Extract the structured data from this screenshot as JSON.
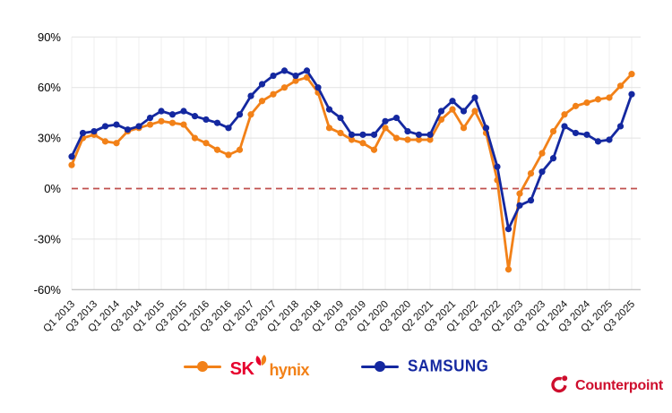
{
  "chart_data": {
    "type": "line",
    "categories": [
      "Q1 2013",
      "Q2 2013",
      "Q3 2013",
      "Q4 2013",
      "Q1 2014",
      "Q2 2014",
      "Q3 2014",
      "Q4 2014",
      "Q1 2015",
      "Q2 2015",
      "Q3 2015",
      "Q4 2015",
      "Q1 2016",
      "Q2 2016",
      "Q3 2016",
      "Q4 2016",
      "Q1 2017",
      "Q2 2017",
      "Q3 2017",
      "Q4 2017",
      "Q1 2018",
      "Q2 2018",
      "Q3 2018",
      "Q4 2018",
      "Q1 2019",
      "Q2 2019",
      "Q3 2019",
      "Q4 2019",
      "Q1 2020",
      "Q2 2020",
      "Q3 2020",
      "Q4 2020",
      "Q1 2021",
      "Q2 2021",
      "Q3 2021",
      "Q4 2021",
      "Q1 2022",
      "Q2 2022",
      "Q3 2022",
      "Q4 2022",
      "Q1 2023",
      "Q2 2023",
      "Q3 2023",
      "Q4 2023",
      "Q1 2024",
      "Q2 2024",
      "Q3 2024",
      "Q4 2024",
      "Q1 2025",
      "Q2 2025",
      "Q3 2025"
    ],
    "x_tick_labels": [
      "Q1 2013",
      "Q3 2013",
      "Q1 2014",
      "Q3 2014",
      "Q1 2015",
      "Q3 2015",
      "Q1 2016",
      "Q3 2016",
      "Q1 2017",
      "Q3 2017",
      "Q1 2018",
      "Q3 2018",
      "Q1 2019",
      "Q3 2019",
      "Q1 2020",
      "Q3 2020",
      "Q2 2021",
      "Q3 2021",
      "Q1 2022",
      "Q3 2022",
      "Q1 2023",
      "Q3 2023",
      "Q1 2024",
      "Q3 2024",
      "Q1 2025",
      "Q3 2025"
    ],
    "series": [
      {
        "name": "SK hynix",
        "color": "#F28118",
        "values": [
          14,
          30,
          32,
          28,
          27,
          34,
          36,
          38,
          40,
          39,
          38,
          30,
          27,
          23,
          20,
          23,
          44,
          52,
          56,
          60,
          64,
          66,
          57,
          36,
          33,
          29,
          27,
          23,
          36,
          30,
          29,
          29,
          29,
          41,
          47,
          36,
          46,
          33,
          5,
          -48,
          -3,
          9,
          21,
          34,
          44,
          49,
          51,
          53,
          54,
          61,
          68
        ]
      },
      {
        "name": "SAMSUNG",
        "color": "#1428A0",
        "values": [
          19,
          33,
          34,
          37,
          38,
          35,
          37,
          42,
          46,
          44,
          46,
          43,
          41,
          39,
          36,
          44,
          55,
          62,
          67,
          70,
          67,
          70,
          60,
          47,
          42,
          32,
          32,
          32,
          40,
          42,
          34,
          32,
          32,
          46,
          52,
          46,
          54,
          36,
          13,
          -24,
          -10,
          -7,
          10,
          18,
          37,
          33,
          32,
          28,
          29,
          37,
          56
        ]
      }
    ],
    "ylabel": "",
    "xlabel": "",
    "yticks": [
      90,
      60,
      30,
      0,
      -30,
      -60
    ],
    "ytick_labels": [
      "90%",
      "60%",
      "30%",
      "0%",
      "-30%",
      "-60%"
    ],
    "ylim": [
      -60,
      90
    ],
    "grid": "on",
    "zero_line": {
      "value": 0,
      "style": "dashed",
      "color": "#C0504D"
    },
    "legend_position": "bottom-center",
    "unit": "%"
  },
  "legend": {
    "sk_prefix": "SK",
    "sk_suffix": "hynix",
    "samsung_label": "SAMSUNG"
  },
  "branding": {
    "name": "Counterpoint",
    "color": "#CE0E2D"
  },
  "colors": {
    "sk_line": "#F28118",
    "sk_red": "#E6002D",
    "samsung_line": "#1428A0",
    "zero_dash": "#C0504D",
    "grid_minor": "#efefef",
    "grid_major": "#e2e2e2",
    "axis_bottom": "#b0b0b0",
    "tick_text": "#111111"
  }
}
